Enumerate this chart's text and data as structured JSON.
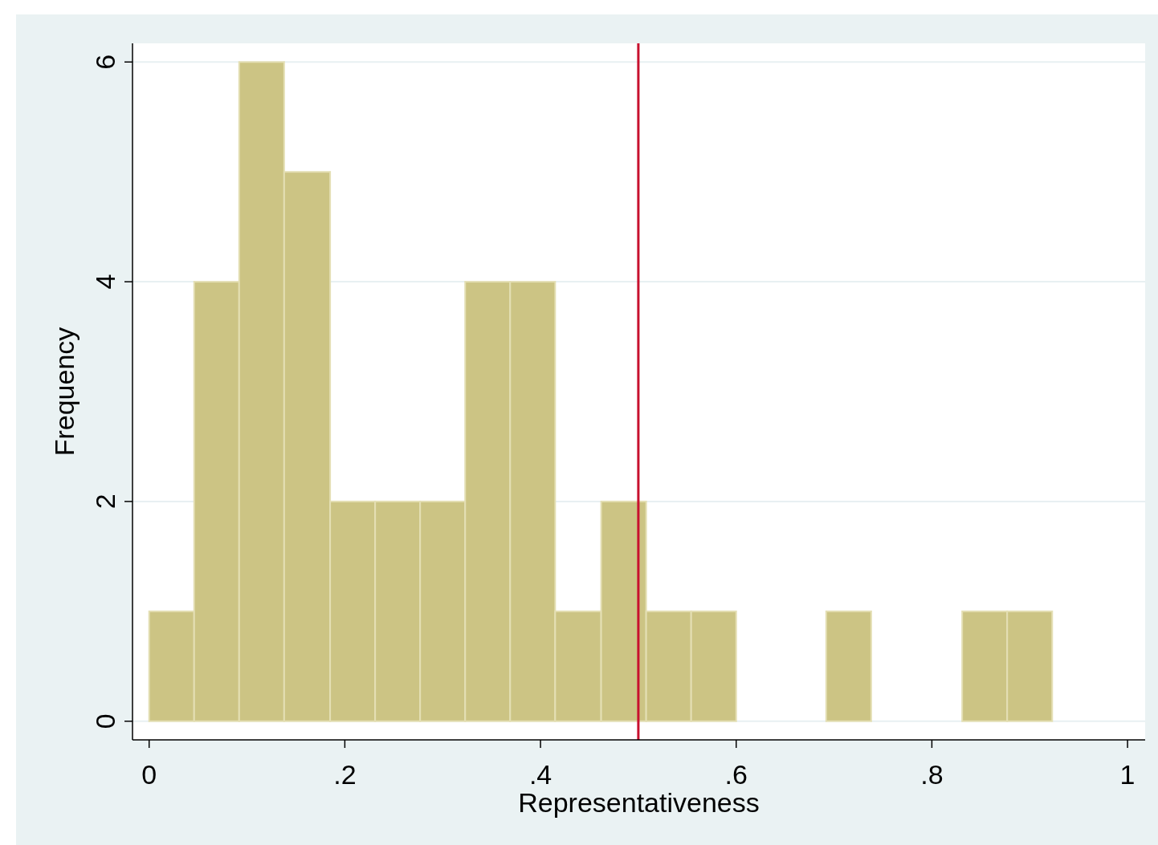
{
  "chart_data": {
    "type": "histogram",
    "xlabel": "Representativeness",
    "ylabel": "Frequency",
    "bins": [
      0,
      0.046,
      0.092,
      0.138,
      0.185,
      0.231,
      0.277,
      0.323,
      0.369,
      0.415,
      0.462,
      0.508,
      0.554,
      0.6,
      0.692,
      0.738,
      0.831,
      0.877,
      0.923
    ],
    "values": [
      1,
      4,
      6,
      5,
      2,
      2,
      2,
      4,
      4,
      1,
      2,
      1,
      1,
      0,
      1,
      0,
      1,
      1
    ],
    "color": "#ccc484",
    "xlim": [
      -0.017,
      1.018
    ],
    "ylim": [
      -0.17,
      6.17
    ],
    "xticks": [
      0,
      {
        "value": 0.2,
        "label": ".2"
      },
      {
        "value": 0.4,
        "label": ".4"
      },
      {
        "value": 0.6,
        "label": ".6"
      },
      {
        "value": 0.8,
        "label": ".8"
      },
      1
    ],
    "yticks": [
      0,
      2,
      4,
      6
    ],
    "grid": "y",
    "ref_lines": [
      {
        "axis": "x",
        "value": 0.5,
        "color": "#c8102e"
      }
    ]
  }
}
